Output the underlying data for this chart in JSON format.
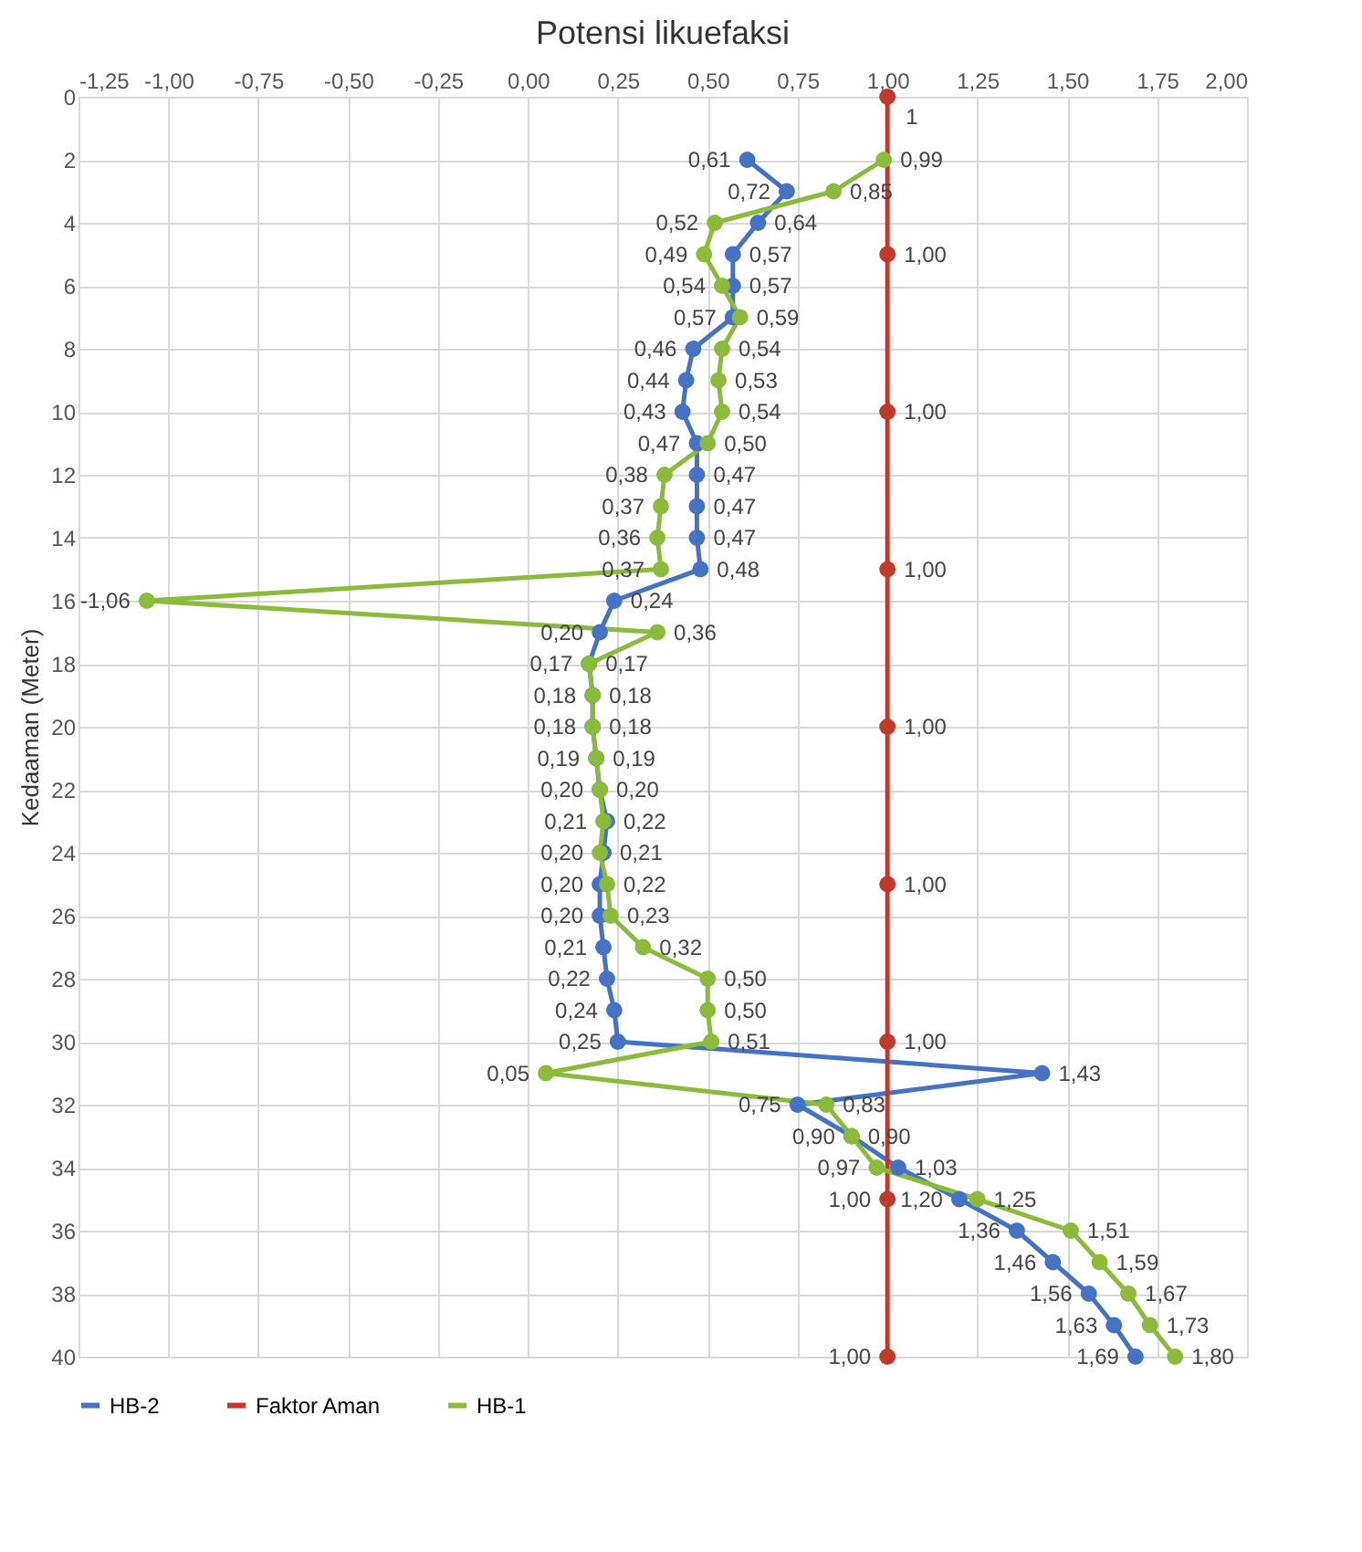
{
  "chart_data": {
    "type": "line",
    "orientation": "horizontal",
    "title": "Potensi likuefaksi",
    "ylabel": "Kedaaman (Meter)",
    "xlim": [
      -1.25,
      2
    ],
    "xticks": [
      {
        "value": -1.25,
        "label": "-1,25"
      },
      {
        "value": -1,
        "label": "-1,00"
      },
      {
        "value": -0.75,
        "label": "-0,75"
      },
      {
        "value": -0.5,
        "label": "-0,50"
      },
      {
        "value": -0.25,
        "label": "-0,25"
      },
      {
        "value": 0,
        "label": "0,00"
      },
      {
        "value": 0.25,
        "label": "0,25"
      },
      {
        "value": 0.5,
        "label": "0,50"
      },
      {
        "value": 0.75,
        "label": "0,75"
      },
      {
        "value": 1,
        "label": "1,00"
      },
      {
        "value": 1.25,
        "label": "1,25"
      },
      {
        "value": 1.5,
        "label": "1,50"
      },
      {
        "value": 1.75,
        "label": "1,75"
      },
      {
        "value": 2,
        "label": "2,00"
      }
    ],
    "ylim": [
      40,
      0
    ],
    "yticks": [
      0,
      2,
      4,
      6,
      8,
      10,
      12,
      14,
      16,
      18,
      20,
      22,
      24,
      26,
      28,
      30,
      32,
      34,
      36,
      38,
      40
    ],
    "grid": true,
    "legend": "bottom",
    "marker": "circle",
    "line_style": "solid",
    "series": [
      {
        "name": "HB-2",
        "color": "#4472c4",
        "values": [
          0.61,
          0.72,
          0.64,
          0.57,
          0.57,
          0.57,
          0.46,
          0.44,
          0.43,
          0.47,
          0.47,
          0.47,
          0.47,
          0.48,
          0.24,
          0.2,
          0.17,
          0.18,
          0.18,
          0.19,
          0.2,
          0.22,
          0.21,
          0.2,
          0.2,
          0.21,
          0.22,
          0.24,
          0.25,
          1.43,
          0.75,
          0.9,
          1.03,
          1.2,
          1.36,
          1.46,
          1.56,
          1.63,
          1.69
        ],
        "x": [
          2,
          3,
          4,
          5,
          6,
          7,
          8,
          9,
          10,
          11,
          12,
          13,
          14,
          15,
          16,
          17,
          18,
          19,
          20,
          21,
          22,
          23,
          24,
          25,
          26,
          27,
          28,
          29,
          30,
          31,
          32,
          33,
          34,
          35,
          36,
          37,
          38,
          39,
          40
        ],
        "value_labels": [
          "0,61",
          "0,72",
          "0,64",
          "0,57",
          "0,57",
          "0,57",
          "0,46",
          "0,44",
          "0,43",
          "0,47",
          "0,47",
          "0,47",
          "0,47",
          "0,48",
          "0,24",
          "0,20",
          "0,17",
          "0,18",
          "0,18",
          "0,19",
          "0,20",
          "0,22",
          "0,21",
          "0,20",
          "0,20",
          "0,21",
          "0,22",
          "0,24",
          "0,25",
          "1,43",
          "0,75",
          "0,90",
          "1,03",
          "1,20",
          "1,36",
          "1,46",
          "1,56",
          "1,63",
          "1,69"
        ]
      },
      {
        "name": "Faktor Aman",
        "color": "#c0392b",
        "values": [
          1,
          1,
          1,
          1,
          1,
          1,
          1,
          1,
          1
        ],
        "x": [
          0,
          5,
          10,
          15,
          20,
          25,
          30,
          35,
          40
        ],
        "value_labels": [
          "1",
          "1,00",
          "1,00",
          "1,00",
          "1,00",
          "1,00",
          "1,00",
          "1,00",
          "1,00"
        ]
      },
      {
        "name": "HB-1",
        "color": "#8cbb3c",
        "values": [
          0.99,
          0.85,
          0.52,
          0.49,
          0.54,
          0.59,
          0.54,
          0.53,
          0.54,
          0.5,
          0.38,
          0.37,
          0.36,
          0.37,
          -1.06,
          0.36,
          0.17,
          0.18,
          0.18,
          0.19,
          0.2,
          0.21,
          0.2,
          0.22,
          0.23,
          0.32,
          0.5,
          0.5,
          0.51,
          0.05,
          0.83,
          0.9,
          0.97,
          1.25,
          1.51,
          1.59,
          1.67,
          1.73,
          1.8
        ],
        "x": [
          2,
          3,
          4,
          5,
          6,
          7,
          8,
          9,
          10,
          11,
          12,
          13,
          14,
          15,
          16,
          17,
          18,
          19,
          20,
          21,
          22,
          23,
          24,
          25,
          26,
          27,
          28,
          29,
          30,
          31,
          32,
          33,
          34,
          35,
          36,
          37,
          38,
          39,
          40
        ],
        "value_labels": [
          "0,99",
          "0,85",
          "0,52",
          "0,49",
          "0,54",
          "0,59",
          "0,54",
          "0,53",
          "0,54",
          "0,50",
          "0,38",
          "0,37",
          "0,36",
          "0,37",
          "-1,06",
          "0,36",
          "0,17",
          "0,18",
          "0,18",
          "0,19",
          "0,20",
          "0,21",
          "0,20",
          "0,22",
          "0,23",
          "0,32",
          "0,50",
          "0,50",
          "0,51",
          "0,05",
          "0,83",
          "0,90",
          "0,97",
          "1,25",
          "1,51",
          "1,59",
          "1,67",
          "1,73",
          "1,80"
        ]
      }
    ]
  }
}
